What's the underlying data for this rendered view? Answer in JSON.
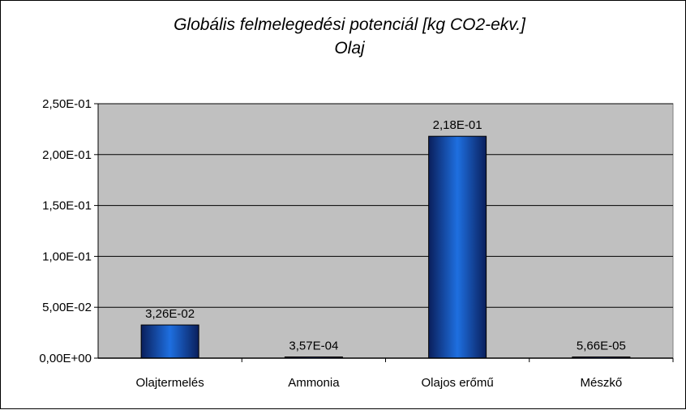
{
  "chart_data": {
    "type": "bar",
    "title": "Globális felmelegedési potenciál  [kg CO2-ekv.]",
    "subtitle": "Olaj",
    "categories": [
      "Olajtermelés",
      "Ammonia",
      "Olajos erőmű",
      "Mészkő"
    ],
    "values": [
      0.0326,
      0.000357,
      0.218,
      5.66e-05
    ],
    "data_labels": [
      "3,26E-02",
      "3,57E-04",
      "2,18E-01",
      "5,66E-05"
    ],
    "y_ticks": [
      0,
      0.05,
      0.1,
      0.15,
      0.2,
      0.25
    ],
    "y_tick_labels": [
      "0,00E+00",
      "5,00E-02",
      "1,00E-01",
      "1,50E-01",
      "2,00E-01",
      "2,50E-01"
    ],
    "ylim": [
      0,
      0.25
    ],
    "grid": true,
    "legend": "none",
    "colors": {
      "plot_background": "#c0c0c0",
      "bar_dark": "#0a1f5c",
      "bar_light": "#1e6fe0",
      "grid": "#000000"
    }
  }
}
